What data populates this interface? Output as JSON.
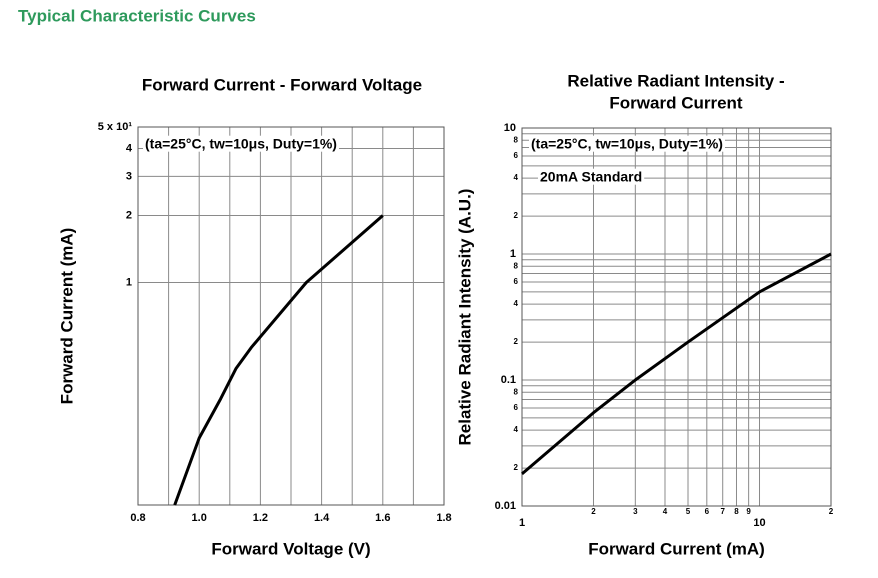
{
  "heading": "Typical Characteristic Curves",
  "chart_data": [
    {
      "type": "line",
      "title": "Forward Current - Forward Voltage",
      "xlabel": "Forward Voltage (V)",
      "ylabel": "Forward Current (mA)",
      "annotations": [
        "(ta=25°C, tw=10μs, Duty=1%)"
      ],
      "x": [
        0.92,
        1.0,
        1.07,
        1.12,
        1.17,
        1.35,
        1.6
      ],
      "values": [
        0.1,
        0.2,
        0.3,
        0.41,
        0.51,
        1,
        2
      ],
      "color": "#000000",
      "xlim": [
        0.8,
        1.8
      ],
      "xticks": [
        0.8,
        {
          "value": 1,
          "label": "1.0"
        },
        1.2,
        1.4,
        1.6,
        1.8
      ],
      "minor_xticks": [
        0.9,
        1.1,
        1.3,
        1.5,
        1.7
      ],
      "ylim": [
        0.1,
        5
      ],
      "ylog": true,
      "yticks": [
        1,
        2,
        3,
        4,
        {
          "value": 5,
          "label": "5 x 10¹"
        }
      ],
      "grid": true
    },
    {
      "type": "line",
      "title": [
        "Relative Radiant Intensity -",
        "Forward Current"
      ],
      "xlabel": "Forward Current (mA)",
      "ylabel": "Relative Radiant Intensity (A.U.)",
      "annotations": [
        "(ta=25°C, tw=10μs, Duty=1%)",
        "20mA Standard"
      ],
      "x": [
        1,
        2,
        3,
        5,
        10,
        20
      ],
      "values": [
        0.018,
        0.055,
        0.1,
        0.2,
        0.5,
        1
      ],
      "color": "#000000",
      "xlim": [
        1,
        20
      ],
      "xlog": true,
      "xticks": [
        1,
        2,
        3,
        4,
        5,
        6,
        7,
        8,
        9,
        10,
        {
          "value": 20,
          "label": "2"
        }
      ],
      "ylim": [
        0.01,
        10
      ],
      "ylog": true,
      "yticks": [
        0.01,
        {
          "value": 0.02,
          "label": "2"
        },
        {
          "value": 0.04,
          "label": "4"
        },
        {
          "value": 0.06,
          "label": "6"
        },
        {
          "value": 0.08,
          "label": "8"
        },
        0.1,
        {
          "value": 0.2,
          "label": "2"
        },
        {
          "value": 0.4,
          "label": "4"
        },
        {
          "value": 0.6,
          "label": "6"
        },
        {
          "value": 0.8,
          "label": "8"
        },
        1,
        2,
        4,
        6,
        8,
        10
      ],
      "minor_yticks": [
        0.03,
        0.05,
        0.07,
        0.09,
        0.3,
        0.5,
        0.7,
        0.9,
        3,
        5,
        7,
        9
      ],
      "grid": true
    }
  ]
}
